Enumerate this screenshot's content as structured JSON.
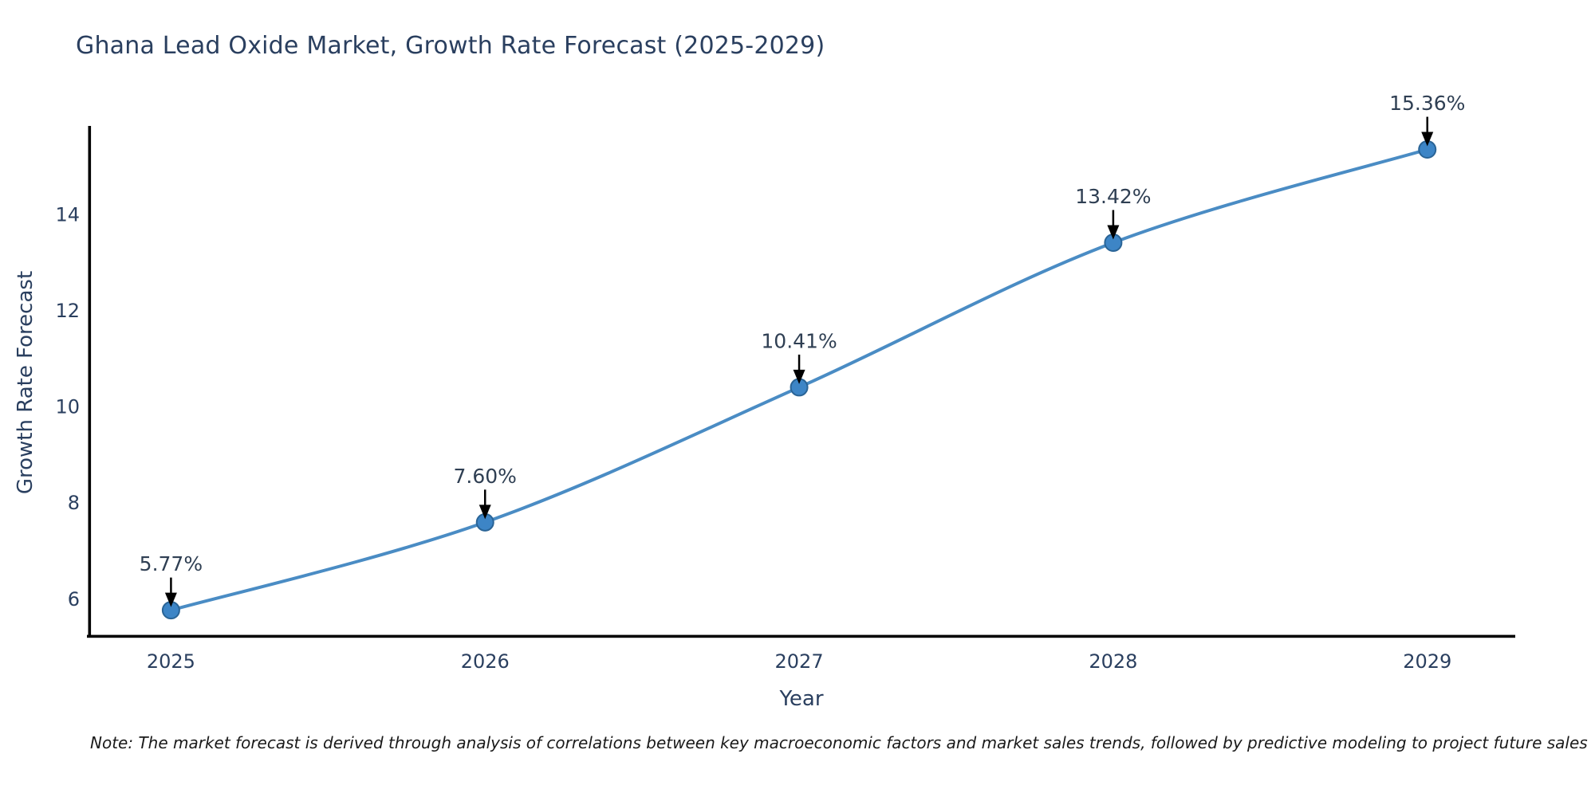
{
  "chart": {
    "title": "Ghana Lead Oxide Market, Growth Rate Forecast (2025-2029)",
    "x_label": "Year",
    "y_label": "Growth Rate Forecast",
    "note": "Note: The market forecast is derived through analysis of correlations between key macroeconomic factors and market sales trends, followed by predictive modeling to project future sales"
  },
  "chart_data": {
    "type": "line",
    "title": "Ghana Lead Oxide Market, Growth Rate Forecast (2025-2029)",
    "xlabel": "Year",
    "ylabel": "Growth Rate Forecast",
    "x": [
      2025,
      2026,
      2027,
      2028,
      2029
    ],
    "values": [
      5.77,
      7.6,
      10.41,
      13.42,
      15.36
    ],
    "point_labels": [
      "5.77%",
      "7.60%",
      "10.41%",
      "13.42%",
      "15.36%"
    ],
    "x_tick_labels": [
      "2025",
      "2026",
      "2027",
      "2028",
      "2029"
    ],
    "y_ticks": [
      6,
      8,
      10,
      12,
      14
    ],
    "xlim": [
      2024.74,
      2029.28
    ],
    "ylim": [
      5.2,
      15.85
    ],
    "grid": false,
    "legend": "none",
    "smooth": true,
    "colors": {
      "line": "#4a8cc4",
      "marker_fill": "#3d85c6",
      "marker_edge": "#2a6496",
      "arrow": "#000000",
      "spine": "#000000",
      "tick_text": "#2a3f5f",
      "annotation_text": "#2f3f53"
    }
  }
}
